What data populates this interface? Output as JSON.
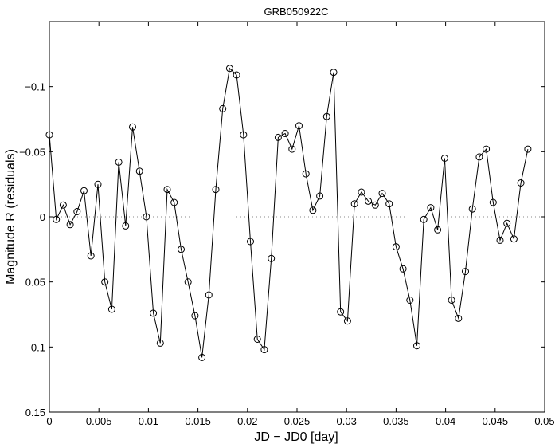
{
  "chart_data": {
    "type": "line",
    "title": "GRB050922C",
    "xlabel": "JD − JD0  [day]",
    "ylabel": "Magnitude  R  (residuals)",
    "xlim": [
      0,
      0.05
    ],
    "ylim": [
      -0.15,
      0.15
    ],
    "y_inverted": true,
    "grid": false,
    "legend": "none",
    "reference_line": {
      "y": 0,
      "style": "dotted"
    },
    "marker": "open-circle",
    "line_color": "#000000",
    "x_ticks": [
      {
        "value": 0,
        "label": "0"
      },
      {
        "value": 0.005,
        "label": "0.005"
      },
      {
        "value": 0.01,
        "label": "0.01"
      },
      {
        "value": 0.015,
        "label": "0.015"
      },
      {
        "value": 0.02,
        "label": "0.02"
      },
      {
        "value": 0.025,
        "label": "0.025"
      },
      {
        "value": 0.03,
        "label": "0.03"
      },
      {
        "value": 0.035,
        "label": "0.035"
      },
      {
        "value": 0.04,
        "label": "0.04"
      },
      {
        "value": 0.045,
        "label": "0.045"
      },
      {
        "value": 0.05,
        "label": "0.05"
      }
    ],
    "y_ticks": [
      {
        "value": -0.1,
        "label": "−0.1"
      },
      {
        "value": -0.05,
        "label": "−0.05"
      },
      {
        "value": 0,
        "label": "0"
      },
      {
        "value": 0.05,
        "label": "0.05"
      },
      {
        "value": 0.1,
        "label": "0.1"
      },
      {
        "value": 0.15,
        "label": "0.15"
      }
    ],
    "series": [
      {
        "x": [
          0.0,
          0.0007,
          0.0014,
          0.0021,
          0.0028,
          0.0035,
          0.0042,
          0.0049,
          0.0056,
          0.0063,
          0.007,
          0.0077,
          0.0084,
          0.0091,
          0.0098,
          0.0105,
          0.0112,
          0.0119,
          0.0126,
          0.0133,
          0.014,
          0.0147,
          0.0154,
          0.0161,
          0.0168,
          0.0175,
          0.0182,
          0.0189,
          0.0196,
          0.0203,
          0.021,
          0.0217,
          0.0224,
          0.0231,
          0.0238,
          0.0245,
          0.0252,
          0.0259,
          0.0266,
          0.0273,
          0.028,
          0.0287,
          0.0294,
          0.0301,
          0.0308,
          0.0315,
          0.0322,
          0.0329,
          0.0336,
          0.0343,
          0.035,
          0.0357,
          0.0364,
          0.0371,
          0.0378,
          0.0385,
          0.0392,
          0.0399,
          0.0406,
          0.0413,
          0.042,
          0.0427,
          0.0434,
          0.0441,
          0.0448,
          0.0455,
          0.0462,
          0.0469,
          0.0476,
          0.0483
        ],
        "y": [
          -0.063,
          0.002,
          -0.009,
          0.006,
          -0.004,
          -0.02,
          0.03,
          -0.025,
          0.05,
          0.071,
          -0.042,
          0.007,
          -0.069,
          -0.035,
          0.0,
          0.074,
          0.097,
          -0.021,
          -0.011,
          0.025,
          0.05,
          0.076,
          0.108,
          0.06,
          -0.021,
          -0.083,
          -0.114,
          -0.109,
          -0.063,
          0.019,
          0.094,
          0.102,
          0.032,
          -0.061,
          -0.064,
          -0.052,
          -0.07,
          -0.033,
          -0.005,
          -0.016,
          -0.077,
          -0.111,
          0.073,
          0.08,
          -0.01,
          -0.019,
          -0.012,
          -0.009,
          -0.018,
          -0.01,
          0.023,
          0.04,
          0.064,
          0.099,
          0.002,
          -0.007,
          0.01,
          -0.045,
          0.064,
          0.078,
          0.042,
          -0.006,
          -0.046,
          -0.052,
          -0.011,
          0.018,
          0.005,
          0.017,
          -0.026,
          -0.052
        ]
      }
    ]
  }
}
